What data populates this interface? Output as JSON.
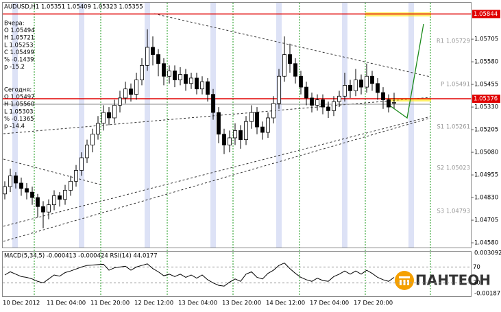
{
  "chart_data": {
    "type": "candlestick",
    "title": "AUDUSD,H1  1.05351 1.05409 1.05323 1.05355",
    "info_yesterday": [
      "Вчера:",
      "O 1.05494",
      "H 1.05721",
      "L 1.05253",
      "C 1.05499",
      "% -0.1439",
      "p -15.2"
    ],
    "info_today": [
      "Сегодня:",
      "O 1.05497",
      "H 1.05560",
      "L 1.05303",
      "% -0.1365",
      "p -14.4"
    ],
    "pivots": [
      "R1 1.05729",
      "P 1.05491",
      "S1 1.05261",
      "S2 1.05023",
      "S3 1.04793"
    ],
    "categories": [
      "10 Dec 2012",
      null,
      null,
      null,
      null,
      null,
      null,
      null,
      "11 Dec 04:00",
      null,
      null,
      null,
      null,
      null,
      null,
      null,
      "11 Dec 20:00",
      null,
      null,
      null,
      null,
      null,
      null,
      null,
      "12 Dec 12:00",
      null,
      null,
      null,
      null,
      null,
      null,
      null,
      "13 Dec 04:00",
      null,
      null,
      null,
      null,
      null,
      null,
      null,
      "13 Dec 20:00",
      null,
      null,
      null,
      null,
      null,
      null,
      null,
      "14 Dec 12:00",
      null,
      null,
      null,
      null,
      null,
      null,
      null,
      "17 Dec 04:00",
      null,
      null,
      null,
      null,
      null,
      null,
      null,
      "17 Dec 20:00",
      null,
      null,
      null,
      null,
      null,
      null,
      null
    ],
    "open": [
      1.0485,
      1.0489,
      1.0495,
      1.0491,
      1.0488,
      1.0486,
      1.0483,
      1.0478,
      1.0475,
      1.0479,
      1.0484,
      1.0482,
      1.0487,
      1.0492,
      1.0498,
      1.0505,
      1.0512,
      1.0518,
      1.0524,
      1.053,
      1.0527,
      1.0534,
      1.0538,
      1.0543,
      1.054,
      1.0548,
      1.0556,
      1.0566,
      1.0562,
      1.0557,
      1.055,
      1.0553,
      1.0548,
      1.0551,
      1.0546,
      1.0549,
      1.0543,
      1.0547,
      1.054,
      1.053,
      1.0518,
      1.0512,
      1.0516,
      1.052,
      1.0515,
      1.0525,
      1.053,
      1.0522,
      1.0519,
      1.0527,
      1.0535,
      1.055,
      1.0562,
      1.0557,
      1.055,
      1.0544,
      1.0538,
      1.0534,
      1.0537,
      1.0533,
      1.0531,
      1.0536,
      1.0539,
      1.0545,
      1.0542,
      1.0548,
      1.0544,
      1.055,
      1.0546,
      1.0541,
      1.0537,
      1.05351
    ],
    "high": [
      1.0492,
      1.0499,
      1.0497,
      1.0494,
      1.0491,
      1.0489,
      1.0485,
      1.0481,
      1.0482,
      1.0487,
      1.0486,
      1.049,
      1.0495,
      1.0501,
      1.0508,
      1.0515,
      1.0521,
      1.0528,
      1.0534,
      1.0533,
      1.0537,
      1.0542,
      1.0547,
      1.0546,
      1.0552,
      1.056,
      1.0576,
      1.0572,
      1.0565,
      1.056,
      1.0556,
      1.0556,
      1.0555,
      1.0554,
      1.0552,
      1.0552,
      1.055,
      1.0549,
      1.0543,
      1.0533,
      1.0521,
      1.052,
      1.0524,
      1.0523,
      1.0528,
      1.0534,
      1.0533,
      1.0525,
      1.053,
      1.0539,
      1.0554,
      1.0572,
      1.0568,
      1.056,
      1.0553,
      1.0547,
      1.0541,
      1.054,
      1.054,
      1.0536,
      1.0539,
      1.0542,
      1.0552,
      1.0548,
      1.0554,
      1.0551,
      1.0557,
      1.0553,
      1.0549,
      1.0544,
      1.054,
      1.05409
    ],
    "low": [
      1.0482,
      1.0486,
      1.0488,
      1.0484,
      1.0482,
      1.0479,
      1.0472,
      1.0466,
      1.0471,
      1.0476,
      1.0478,
      1.0479,
      1.0484,
      1.0489,
      1.0495,
      1.0502,
      1.0508,
      1.0515,
      1.052,
      1.0523,
      1.0524,
      1.053,
      1.0535,
      1.0536,
      1.0537,
      1.0545,
      1.0553,
      1.0556,
      1.055,
      1.0545,
      1.0546,
      1.0544,
      1.0545,
      1.0542,
      1.0543,
      1.054,
      1.054,
      1.0536,
      1.0526,
      1.0513,
      1.0507,
      1.0508,
      1.0512,
      1.051,
      1.0512,
      1.0521,
      1.0518,
      1.0515,
      1.0516,
      1.0524,
      1.0532,
      1.0547,
      1.0552,
      1.0546,
      1.054,
      1.0534,
      1.053,
      1.0531,
      1.0529,
      1.0527,
      1.0528,
      1.0533,
      1.0536,
      1.0538,
      1.0539,
      1.054,
      1.0541,
      1.0542,
      1.0537,
      1.0532,
      1.053,
      1.05323
    ],
    "close": [
      1.0489,
      1.0495,
      1.0491,
      1.0488,
      1.0486,
      1.0483,
      1.0478,
      1.0475,
      1.0479,
      1.0484,
      1.0482,
      1.0487,
      1.0492,
      1.0498,
      1.0505,
      1.0512,
      1.0518,
      1.0524,
      1.053,
      1.0527,
      1.0534,
      1.0538,
      1.0543,
      1.054,
      1.0548,
      1.0556,
      1.0566,
      1.0562,
      1.0557,
      1.055,
      1.0553,
      1.0548,
      1.0551,
      1.0546,
      1.0549,
      1.0543,
      1.0547,
      1.054,
      1.053,
      1.0518,
      1.0512,
      1.0516,
      1.052,
      1.0515,
      1.0525,
      1.053,
      1.0522,
      1.0519,
      1.0527,
      1.0535,
      1.055,
      1.0562,
      1.0557,
      1.055,
      1.0544,
      1.0538,
      1.0534,
      1.0537,
      1.0533,
      1.0531,
      1.0536,
      1.0539,
      1.0545,
      1.0542,
      1.0548,
      1.0544,
      1.055,
      1.0546,
      1.0541,
      1.0537,
      1.0533,
      1.05355
    ],
    "ylim": [
      1.0455,
      1.0591
    ],
    "yticks": [
      1.05705,
      {
        "value": 1.0558,
        "label": "1.05580"
      },
      1.05455,
      {
        "value": 1.0533,
        "label": "1.05330"
      },
      1.05205,
      {
        "value": 1.0508,
        "label": "1.05080"
      },
      1.04955,
      {
        "value": 1.0483,
        "label": "1.04830"
      },
      1.04705,
      {
        "value": 1.0458,
        "label": "1.04580"
      }
    ],
    "hlines": [
      1.05844,
      1.05376
    ],
    "hline_color": "#e00000",
    "indicator_title": "MACD(5,34,5) -0.000413 -0.000424 RSI(14) 44.0177",
    "macd_labels": [
      "0.003092",
      "-0.00187"
    ],
    "rsi": [
      50,
      58,
      52,
      46,
      44,
      40,
      34,
      30,
      40,
      50,
      47,
      56,
      60,
      65,
      70,
      74,
      75,
      76,
      77,
      62,
      68,
      70,
      72,
      62,
      70,
      74,
      78,
      66,
      58,
      48,
      52,
      46,
      52,
      44,
      50,
      42,
      50,
      38,
      30,
      24,
      22,
      32,
      40,
      34,
      52,
      58,
      44,
      40,
      54,
      62,
      74,
      80,
      66,
      54,
      44,
      38,
      34,
      42,
      36,
      34,
      46,
      52,
      60,
      52,
      60,
      52,
      62,
      54,
      44,
      38,
      34,
      44
    ],
    "rsi_lim": [
      0,
      100
    ],
    "rsi_levels": [
      70,
      30
    ],
    "logo": "ПАНТЕОН"
  }
}
